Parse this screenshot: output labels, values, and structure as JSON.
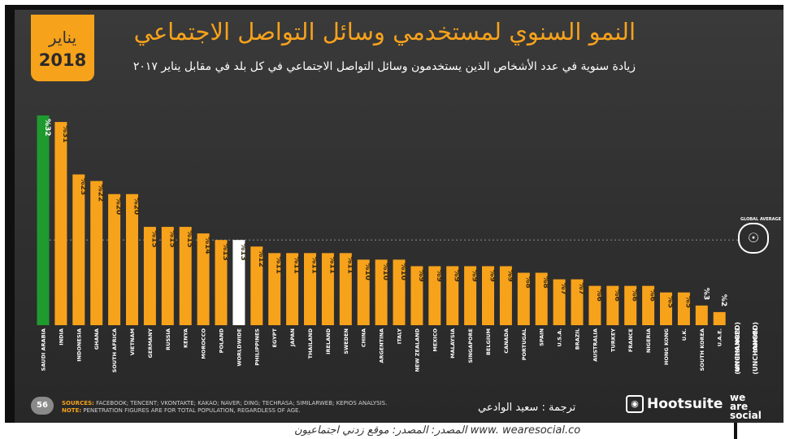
{
  "header": {
    "month": "يناير",
    "year": "2018",
    "title": "النمو السنوي لمستخدمي وسائل التواصل الاجتماعي",
    "subtitle": "زيادة سنوية في عدد الأشخاص الذين يستخدمون وسائل التواصل الاجتماعي في كل بلد في مقابل يناير ٢٠١٧"
  },
  "chart_data": {
    "type": "bar",
    "categories": [
      "SAUDI ARABIA",
      "INDIA",
      "INDONESIA",
      "GHANA",
      "SOUTH AFRICA",
      "VIETNAM",
      "GERMANY",
      "RUSSIA",
      "KENYA",
      "MOROCCO",
      "POLAND",
      "WORLDWIDE",
      "PHILIPPINES",
      "EGYPT",
      "JAPAN",
      "THAILAND",
      "IRELAND",
      "SWEDEN",
      "CHINA",
      "ARGENTINA",
      "ITALY",
      "NEW ZEALAND",
      "MEXICO",
      "MALAYSIA",
      "SINGAPORE",
      "BELGIUM",
      "CANADA",
      "PORTUGAL",
      "SPAIN",
      "U.S.A.",
      "BRAZIL",
      "AUSTRALIA",
      "TURKEY",
      "FRANCE",
      "NIGERIA",
      "HONG KONG",
      "U.K.",
      "SOUTH KOREA",
      "U.A.E.",
      "NETHERLANDS",
      "TAIWAN"
    ],
    "values": [
      32,
      31,
      23,
      22,
      20,
      20,
      15,
      15,
      15,
      14,
      13,
      13,
      12,
      11,
      11,
      11,
      11,
      11,
      10,
      10,
      10,
      9,
      9,
      9,
      9,
      9,
      9,
      8,
      8,
      7,
      7,
      6,
      6,
      6,
      6,
      5,
      5,
      3,
      2,
      0,
      0
    ],
    "value_labels": [
      "%32",
      "%31",
      "%23",
      "%22",
      "%20",
      "%20",
      "%15",
      "%15",
      "%15",
      "%14",
      "%13",
      "%13",
      "%12",
      "%11",
      "%11",
      "%11",
      "%11",
      "%11",
      "%10",
      "%10",
      "%10",
      "%9",
      "%9",
      "%9",
      "%9",
      "%9",
      "%9",
      "%8",
      "%8",
      "%7",
      "%7",
      "%6",
      "%6",
      "%6",
      "%6",
      "%5",
      "%5",
      "%3",
      "%2",
      "(UNCHANGED)",
      "(UNCHANGED)"
    ],
    "highlight": {
      "SAUDI ARABIA": "#1f9a2e",
      "WORLDWIDE": "#ffffff"
    },
    "bar_color": "#f7a21b",
    "reference_line": {
      "value": 13,
      "label": "GLOBAL AVERAGE"
    },
    "ylim": [
      0,
      32
    ]
  },
  "footer": {
    "page_number": "56",
    "sources_label": "SOURCES:",
    "sources_text": "FACEBOOK; TENCENT; VKONTAKTE; KAKAO; NAVER; DING; TECHRASA; SIMILARWEB; KEPIOS ANALYSIS.",
    "note_label": "NOTE:",
    "note_text": "PENETRATION FIGURES ARE FOR TOTAL POPULATION, REGARDLESS OF AGE.",
    "translator": "ترجمة : سعيد الوادعي",
    "brand1": "Hootsuite",
    "brand2_line1": "we",
    "brand2_line2": "are",
    "brand2_line3": "social"
  },
  "caption": "المصدر: المصدر: موقع زدني اجتماعيون  www. wearesocial.co"
}
